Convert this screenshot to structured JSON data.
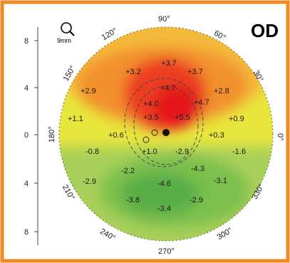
{
  "eye_label": "OD",
  "scale_label": "9mm",
  "icons": {
    "zoom": "magnifier-icon"
  },
  "colors": {
    "border": "#f08a24"
  },
  "axis_ticks": [
    "8",
    "4",
    "0",
    "4",
    "8"
  ],
  "angle_labels": [
    "90°",
    "60°",
    "30°",
    "0°",
    "330°",
    "300°",
    "270°",
    "240°",
    "210°",
    "180°",
    "150°",
    "120°"
  ],
  "values": [
    "+3.7",
    "+3.2",
    "+3.7",
    "+2.9",
    "+2.8",
    "+4.7",
    "+4.0",
    "+4.7",
    "+1.1",
    "+3.5",
    "+5.5",
    "+0.9",
    "+0.6",
    "+0.3",
    "-0.8",
    "+1.0",
    "-2.9",
    "-1.6",
    "-2.2",
    "-4.3",
    "-2.9",
    "-4.6",
    "-3.1",
    "-3.8",
    "-2.9",
    "-3.4"
  ]
}
